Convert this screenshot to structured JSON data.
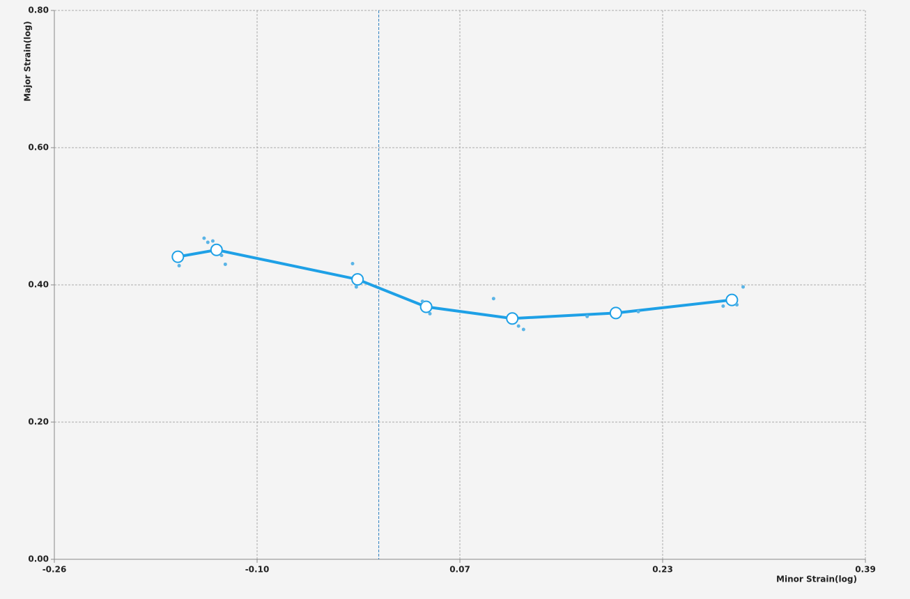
{
  "chart_data": {
    "type": "line",
    "x_label": "Minor Strain(log)",
    "y_label": "Major Strain(log)",
    "xlim": [
      -0.26,
      0.39
    ],
    "xticks": [
      -0.26,
      {
        "value": -0.0975,
        "label": "-0.10"
      },
      {
        "value": 0.065,
        "label": "0.07"
      },
      {
        "value": 0.2275,
        "label": "0.23"
      },
      0.39
    ],
    "ylim": [
      0,
      0.8
    ],
    "yticks": [
      {
        "value": 0,
        "label": "0.00"
      },
      {
        "value": 0.2,
        "label": "0.20"
      },
      {
        "value": 0.4,
        "label": "0.40"
      },
      {
        "value": 0.6,
        "label": "0.60"
      },
      {
        "value": 0.8,
        "label": "0.80"
      }
    ],
    "grid": true,
    "reference_x": 0,
    "series": [
      {
        "color": "#1ea0e6",
        "x": [
          -0.161,
          -0.13,
          -0.017,
          0.038,
          0.107,
          0.19,
          0.283
        ],
        "values": [
          0.441,
          0.451,
          0.408,
          0.368,
          0.351,
          0.359,
          0.378
        ]
      },
      {
        "color": "#5ab4e6",
        "x": [
          -0.14,
          -0.137,
          -0.133,
          -0.126,
          -0.123,
          -0.16,
          -0.021,
          -0.018,
          0.035,
          0.041,
          0.092,
          0.112,
          0.116,
          0.167,
          0.208,
          0.276,
          0.287,
          0.292
        ],
        "values": [
          0.468,
          0.462,
          0.464,
          0.443,
          0.43,
          0.428,
          0.431,
          0.397,
          0.376,
          0.358,
          0.38,
          0.34,
          0.335,
          0.354,
          0.361,
          0.369,
          0.371,
          0.397
        ]
      }
    ]
  }
}
